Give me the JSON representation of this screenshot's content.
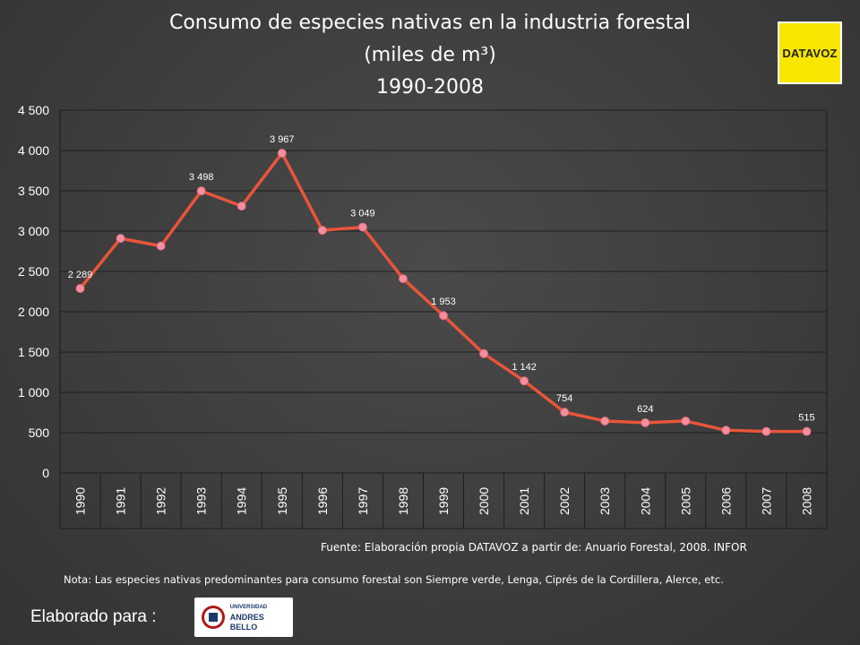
{
  "header": {
    "title_line1": "Consumo de especies nativas en la industria forestal",
    "title_line2": "(miles de m³)",
    "title_line3": "1990-2008"
  },
  "logos": {
    "datavoz": "DATAVOZ",
    "unab_line1": "UNIVERSIDAD",
    "unab_line2": "ANDRES BELLO"
  },
  "footer": {
    "source": "Fuente: Elaboración propia DATAVOZ a partir de: Anuario Forestal, 2008. INFOR",
    "note": "Nota: Las especies nativas predominantes para consumo forestal son Siempre verde, Lenga, Ciprés de la Cordillera, Alerce, etc.",
    "made_for": "Elaborado para :"
  },
  "chart_data": {
    "type": "line",
    "title": "Consumo de especies nativas en la industria forestal (miles de m³) 1990-2008",
    "xlabel": "",
    "ylabel": "",
    "ylim": [
      0,
      4500
    ],
    "yticks": [
      0,
      500,
      1000,
      1500,
      2000,
      2500,
      3000,
      3500,
      4000,
      4500
    ],
    "ytick_labels": [
      "0",
      "500",
      "1 000",
      "1 500",
      "2 000",
      "2 500",
      "3 000",
      "3 500",
      "4 000",
      "4 500"
    ],
    "categories": [
      "1990",
      "1991",
      "1992",
      "1993",
      "1994",
      "1995",
      "1996",
      "1997",
      "1998",
      "1999",
      "2000",
      "2001",
      "2002",
      "2003",
      "2004",
      "2005",
      "2006",
      "2007",
      "2008"
    ],
    "values": [
      2289,
      2910,
      2815,
      3498,
      3310,
      3967,
      3010,
      3049,
      2410,
      1953,
      1480,
      1142,
      754,
      645,
      624,
      645,
      530,
      515,
      515
    ],
    "data_labels": [
      {
        "index": 0,
        "text": "2 289"
      },
      {
        "index": 3,
        "text": "3 498"
      },
      {
        "index": 5,
        "text": "3 967"
      },
      {
        "index": 7,
        "text": "3 049"
      },
      {
        "index": 9,
        "text": "1 953"
      },
      {
        "index": 11,
        "text": "1 142"
      },
      {
        "index": 12,
        "text": "754"
      },
      {
        "index": 14,
        "text": "624"
      },
      {
        "index": 18,
        "text": "515"
      }
    ],
    "grid": true,
    "line_color": "#e8553a",
    "marker_color": "#f48fa0"
  }
}
